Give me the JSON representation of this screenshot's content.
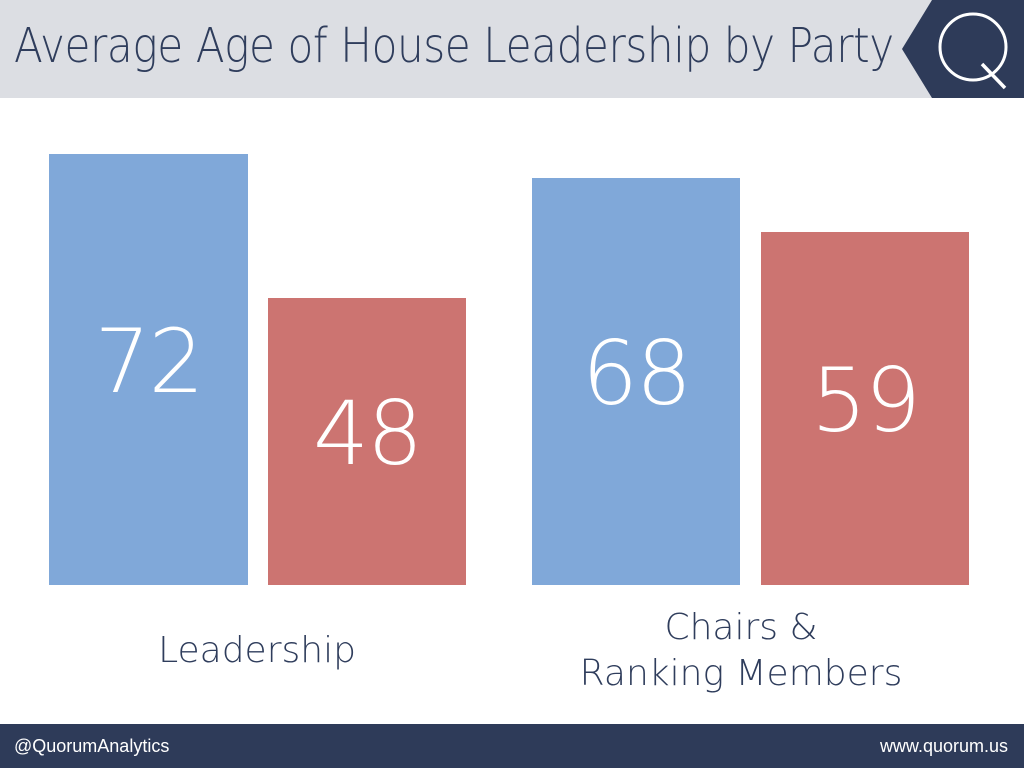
{
  "header": {
    "title": "Average Age of House Leadership by Party"
  },
  "logo": {
    "letter": "Q"
  },
  "colors": {
    "democrat": "#80a8d9",
    "republican": "#cc7471",
    "header_bg": "#dcdee3",
    "footer_bg": "#2e3b59",
    "logo_bg": "#2e3b59",
    "text": "#2f3d5c"
  },
  "chart_data": {
    "type": "bar",
    "categories": [
      "Leadership",
      "Chairs & Ranking Members"
    ],
    "category_lines": [
      [
        "Leadership"
      ],
      [
        "Chairs &",
        "Ranking Members"
      ]
    ],
    "series": [
      {
        "values": [
          72,
          68
        ],
        "color": "#80a8d9"
      },
      {
        "values": [
          48,
          59
        ],
        "color": "#cc7471"
      }
    ],
    "ylim": [
      0,
      72
    ],
    "grid": false,
    "legend": "none"
  },
  "footer": {
    "left": "@QuorumAnalytics",
    "right": "www.quorum.us"
  }
}
